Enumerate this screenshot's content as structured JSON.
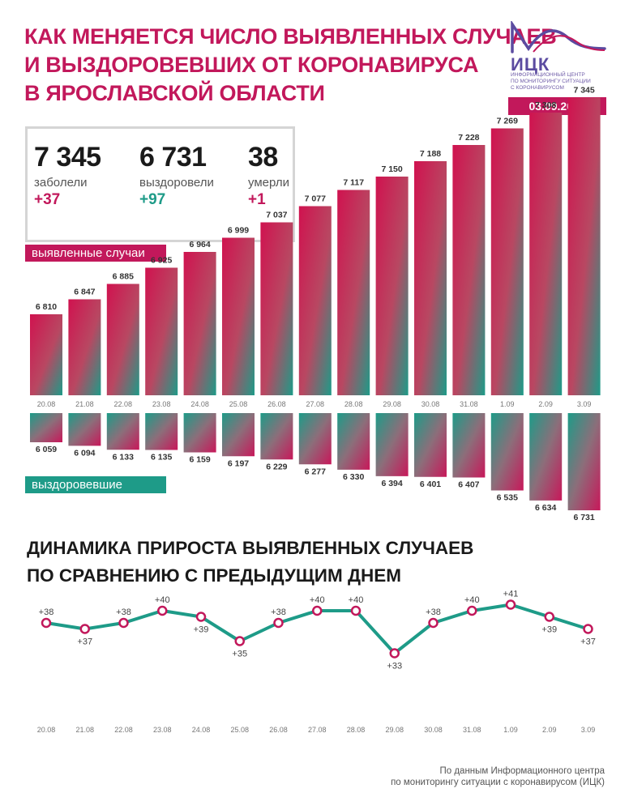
{
  "header": {
    "title_lines": [
      "КАК МЕНЯЕТСЯ ЧИСЛО ВЫЯВЛЕННЫХ СЛУЧАЕВ",
      "И ВЫЗДОРОВЕВШИХ ОТ КОРОНАВИРУСА",
      "В ЯРОСЛАВСКОЙ ОБЛАСТИ"
    ],
    "logo_name": "ИЦК",
    "logo_sub_lines": [
      "ИНФОРМАЦИОННЫЙ ЦЕНТР",
      "ПО МОНИТОРИНГУ СИТУАЦИИ",
      "С КОРОНАВИРУСОМ"
    ],
    "date": "03.09.2020"
  },
  "stats": {
    "cases": {
      "value": "7 345",
      "label": "заболели",
      "delta": "+37"
    },
    "recovered": {
      "value": "6 731",
      "label": "выздоровели",
      "delta": "+97"
    },
    "deaths": {
      "value": "38",
      "label": "умерли",
      "delta": "+1"
    }
  },
  "badges": {
    "cases": "выявленные случаи",
    "recovered": "выздоровевшие"
  },
  "colors": {
    "accent_red": "#c2185b",
    "accent_green": "#1e9b88",
    "line_marker": "#c2185b"
  },
  "chart_data": [
    {
      "type": "bar",
      "categories": [
        "20.08",
        "21.08",
        "22.08",
        "23.08",
        "24.08",
        "25.08",
        "26.08",
        "27.08",
        "28.08",
        "29.08",
        "30.08",
        "31.08",
        "1.09",
        "2.09",
        "3.09"
      ],
      "series": [
        {
          "name": "выявленные случаи",
          "values": [
            6810,
            6847,
            6885,
            6925,
            6964,
            6999,
            7037,
            7077,
            7117,
            7150,
            7188,
            7228,
            7269,
            7308,
            7345
          ]
        }
      ]
    },
    {
      "type": "bar",
      "categories": [
        "20.08",
        "21.08",
        "22.08",
        "23.08",
        "24.08",
        "25.08",
        "26.08",
        "27.08",
        "28.08",
        "29.08",
        "30.08",
        "31.08",
        "1.09",
        "2.09",
        "3.09"
      ],
      "series": [
        {
          "name": "выздоровевшие",
          "values": [
            6059,
            6094,
            6133,
            6135,
            6159,
            6197,
            6229,
            6277,
            6330,
            6394,
            6401,
            6407,
            6535,
            6634,
            6731
          ]
        }
      ]
    },
    {
      "type": "line",
      "title": "ДИНАМИКА ПРИРОСТА ВЫЯВЛЕННЫХ СЛУЧАЕВ ПО СРАВНЕНИЮ С ПРЕДЫДУЩИМ ДНЕМ",
      "categories": [
        "20.08",
        "21.08",
        "22.08",
        "23.08",
        "24.08",
        "25.08",
        "26.08",
        "27.08",
        "28.08",
        "29.08",
        "30.08",
        "31.08",
        "1.09",
        "2.09",
        "3.09"
      ],
      "values": [
        38,
        37,
        38,
        40,
        39,
        35,
        38,
        40,
        40,
        33,
        38,
        40,
        41,
        39,
        37
      ],
      "labels": [
        "+38",
        "+37",
        "+38",
        "+40",
        "+39",
        "+35",
        "+38",
        "+40",
        "+40",
        "+33",
        "+38",
        "+40",
        "+41",
        "+39",
        "+37"
      ]
    }
  ],
  "growth_title_lines": [
    "ДИНАМИКА ПРИРОСТА ВЫЯВЛЕННЫХ СЛУЧАЕВ",
    "ПО СРАВНЕНИЮ С ПРЕДЫДУЩИМ ДНЕМ"
  ],
  "footer_lines": [
    "По данным Информационного центра",
    "по мониторингу ситуации с коронавирусом (ИЦК)"
  ]
}
